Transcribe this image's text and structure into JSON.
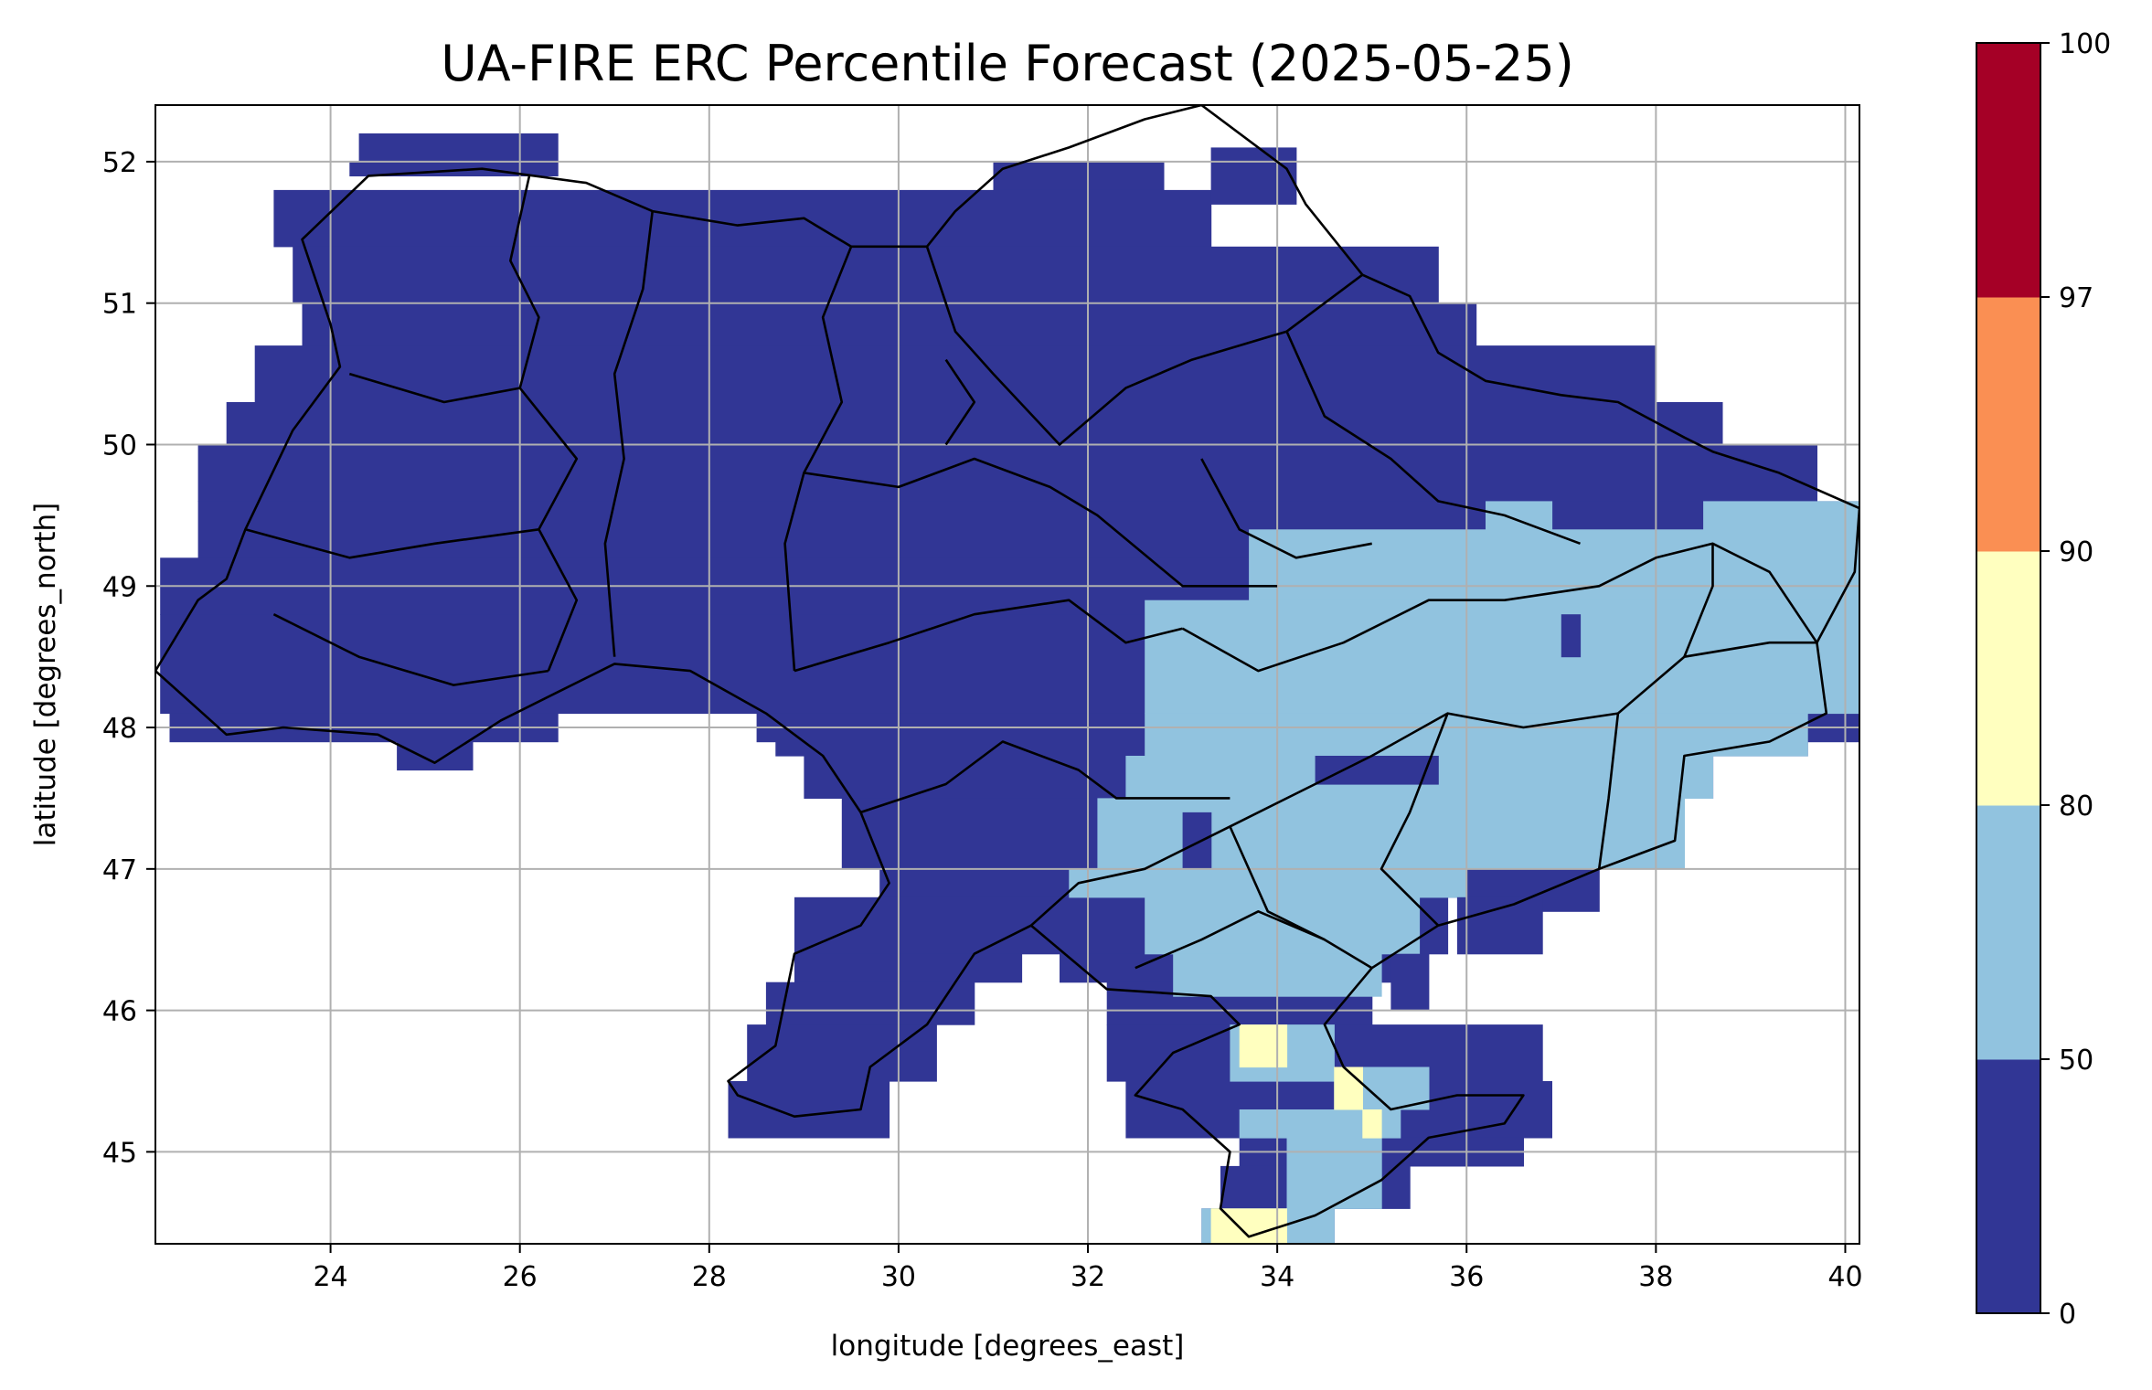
{
  "title": "UA-FIRE ERC Percentile Forecast (2025-05-25)",
  "x_label": "longitude [degrees_east]",
  "y_label": "latitude [degrees_north]",
  "x_ticks": [
    "24",
    "26",
    "28",
    "30",
    "32",
    "34",
    "36",
    "38",
    "40"
  ],
  "y_ticks": [
    "45",
    "46",
    "47",
    "48",
    "49",
    "50",
    "51",
    "52"
  ],
  "colorbar": {
    "ticks": [
      "0",
      "50",
      "80",
      "90",
      "97",
      "100"
    ],
    "bins": [
      {
        "from": 0,
        "to": 50,
        "color": "#313695"
      },
      {
        "from": 50,
        "to": 80,
        "color": "#91c3df"
      },
      {
        "from": 80,
        "to": 90,
        "color": "#ffffbf"
      },
      {
        "from": 90,
        "to": 97,
        "color": "#fa8f53"
      },
      {
        "from": 97,
        "to": 100,
        "color": "#a50026"
      }
    ]
  },
  "map_data": {
    "lon_range": [
      22.15,
      40.15
    ],
    "lat_range": [
      44.35,
      52.4
    ],
    "grid_lines": true,
    "regions": [
      {
        "category": "0-50",
        "color": "#313695",
        "lat_min": 44.6,
        "lat_max": 52.2,
        "lon_min": 22.2,
        "lon_max": 40.2
      },
      {
        "category": "50-80",
        "color": "#91c3df",
        "lat_min": 44.4,
        "lat_max": 49.6,
        "lon_min": 32.4,
        "lon_max": 40.2
      },
      {
        "category": "80-90",
        "color": "#ffffbf",
        "lat_min": 44.4,
        "lat_max": 45.9,
        "lon_min": 33.4,
        "lon_max": 35.1
      }
    ]
  }
}
